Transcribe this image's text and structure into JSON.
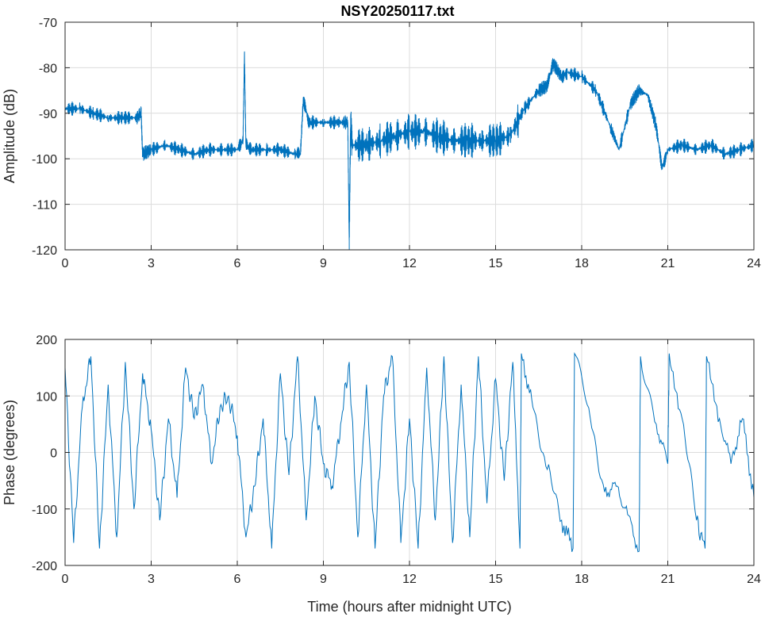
{
  "title": "NSY20250117.txt",
  "colors": {
    "series": "#0072bd",
    "grid": "#dcdcdc",
    "axis": "#262626"
  },
  "chart_data": [
    {
      "type": "line",
      "name": "amplitude",
      "title": "NSY20250117.txt",
      "xlabel": "",
      "ylabel": "Amplitude (dB)",
      "xlim": [
        0,
        24
      ],
      "ylim": [
        -120,
        -70
      ],
      "xticks": [
        0,
        3,
        6,
        9,
        12,
        15,
        18,
        21,
        24
      ],
      "yticks": [
        -120,
        -110,
        -100,
        -90,
        -80,
        -70
      ],
      "grid": true,
      "series": [
        {
          "x": [
            0,
            0.5,
            1,
            1.5,
            2,
            2.5,
            2.65,
            2.7,
            3,
            3.5,
            4,
            4.5,
            5,
            5.5,
            6,
            6.2,
            6.25,
            6.3,
            6.5,
            7,
            7.5,
            8,
            8.2,
            8.3,
            8.5,
            9,
            9.5,
            9.85,
            9.9,
            9.95,
            10,
            10.5,
            11,
            11.5,
            12,
            12.5,
            13,
            13.5,
            14,
            14.5,
            15,
            15.5,
            16,
            16.5,
            16.8,
            17,
            17.3,
            17.5,
            18,
            18.5,
            19,
            19.3,
            19.7,
            20,
            20.3,
            20.6,
            20.8,
            21,
            21.5,
            22,
            22.5,
            23,
            23.5,
            24
          ],
          "y": [
            -89,
            -89,
            -90,
            -91,
            -91,
            -91,
            -90,
            -99,
            -98,
            -97,
            -98,
            -99,
            -98,
            -98,
            -98,
            -96,
            -77,
            -97,
            -98,
            -98,
            -98,
            -99,
            -99,
            -87,
            -92,
            -92,
            -92,
            -92,
            -118,
            -92,
            -97,
            -97,
            -96,
            -95,
            -94,
            -94,
            -95,
            -96,
            -96,
            -96,
            -96,
            -95,
            -89,
            -85,
            -84,
            -79,
            -82,
            -81,
            -82,
            -85,
            -93,
            -98,
            -88,
            -85,
            -86,
            -93,
            -102,
            -98,
            -97,
            -98,
            -97,
            -99,
            -98,
            -97
          ]
        }
      ]
    },
    {
      "type": "line",
      "name": "phase",
      "xlabel": "Time (hours after midnight UTC)",
      "ylabel": "Phase (degrees)",
      "xlim": [
        0,
        24
      ],
      "ylim": [
        -200,
        200
      ],
      "xticks": [
        0,
        3,
        6,
        9,
        12,
        15,
        18,
        21,
        24
      ],
      "yticks": [
        -200,
        -100,
        0,
        100,
        200
      ],
      "grid": true,
      "series": [
        {
          "x": [
            0,
            0.3,
            0.6,
            0.9,
            1.2,
            1.5,
            1.8,
            2.1,
            2.4,
            2.7,
            3,
            3.3,
            3.6,
            3.9,
            4.2,
            4.5,
            4.8,
            5.1,
            5.4,
            5.7,
            6,
            6.3,
            6.6,
            6.9,
            7.2,
            7.5,
            7.8,
            8.1,
            8.4,
            8.7,
            9,
            9.3,
            9.6,
            9.9,
            10.2,
            10.5,
            10.8,
            11.1,
            11.4,
            11.7,
            12,
            12.3,
            12.6,
            12.9,
            13.2,
            13.5,
            13.8,
            14.1,
            14.4,
            14.7,
            15,
            15.3,
            15.6,
            15.85,
            15.9,
            16.3,
            16.8,
            17.3,
            17.7,
            17.75,
            18.3,
            18.8,
            19.2,
            19.6,
            20,
            20.05,
            20.6,
            21,
            21.05,
            21.5,
            22,
            22.3,
            22.35,
            22.8,
            23.2,
            23.6,
            24
          ],
          "y": [
            150,
            -160,
            80,
            170,
            -170,
            120,
            -150,
            160,
            -100,
            140,
            40,
            -120,
            60,
            -80,
            150,
            60,
            120,
            -20,
            80,
            100,
            30,
            -150,
            -60,
            60,
            -170,
            140,
            -40,
            170,
            -120,
            100,
            -20,
            -60,
            50,
            160,
            -150,
            120,
            -170,
            100,
            170,
            -160,
            60,
            -170,
            150,
            -120,
            170,
            -160,
            120,
            -150,
            170,
            -90,
            130,
            -50,
            160,
            -170,
            175,
            80,
            -30,
            -120,
            -170,
            175,
            60,
            -70,
            -60,
            -110,
            -175,
            170,
            50,
            -20,
            175,
            60,
            -120,
            -170,
            170,
            60,
            -20,
            60,
            -80
          ]
        }
      ]
    }
  ]
}
